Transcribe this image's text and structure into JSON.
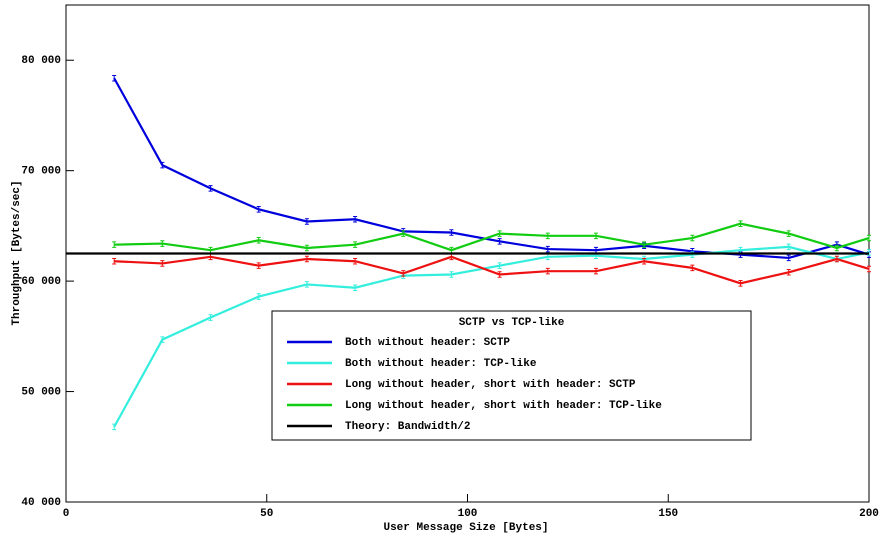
{
  "chart_data": {
    "type": "line",
    "legend_title": "SCTP vs TCP-like",
    "xlabel": "User Message Size [Bytes]",
    "ylabel": "Throughput [Bytes/sec]",
    "x": [
      12,
      24,
      36,
      48,
      60,
      72,
      84,
      96,
      108,
      120,
      132,
      144,
      156,
      168,
      180,
      192,
      200
    ],
    "series": [
      {
        "name": "Both without header: SCTP",
        "color": "#0000dd",
        "error": 250,
        "values": [
          78370,
          70500,
          68400,
          66500,
          65400,
          65600,
          64500,
          64400,
          63600,
          62900,
          62800,
          63200,
          62700,
          62400,
          62100,
          63300,
          62400
        ]
      },
      {
        "name": "Both without header: TCP-like",
        "color": "#33eedd",
        "error": 250,
        "values": [
          46800,
          54700,
          56700,
          58600,
          59700,
          59400,
          60500,
          60600,
          61400,
          62200,
          62300,
          62000,
          62400,
          62800,
          63100,
          62000,
          62600
        ]
      },
      {
        "name": "Long without header, short with header: SCTP",
        "color": "#ee1111",
        "error": 250,
        "values": [
          61800,
          61600,
          62200,
          61400,
          62000,
          61800,
          60700,
          62200,
          60600,
          60900,
          60900,
          61800,
          61200,
          59800,
          60800,
          62000,
          61100
        ]
      },
      {
        "name": "Long without header, short with header: TCP-like",
        "color": "#11cc11",
        "error": 250,
        "values": [
          63300,
          63400,
          62800,
          63700,
          63000,
          63300,
          64300,
          62800,
          64300,
          64100,
          64100,
          63300,
          63900,
          65200,
          64300,
          63000,
          63900
        ]
      },
      {
        "name": "Theory: Bandwidth/2",
        "color": "#000000",
        "x": [
          0,
          200
        ],
        "values": [
          62500,
          62500
        ]
      }
    ],
    "xlim": [
      0,
      200
    ],
    "xticks": [
      0,
      50,
      100,
      150,
      200
    ],
    "ylim": [
      40000,
      85000
    ],
    "yticks": [
      {
        "value": 40000,
        "label": "40 000"
      },
      {
        "value": 50000,
        "label": "50 000"
      },
      {
        "value": 60000,
        "label": "60 000"
      },
      {
        "value": 70000,
        "label": "70 000"
      },
      {
        "value": 80000,
        "label": "80 000"
      }
    ],
    "legend": "lower center",
    "grid": false
  }
}
